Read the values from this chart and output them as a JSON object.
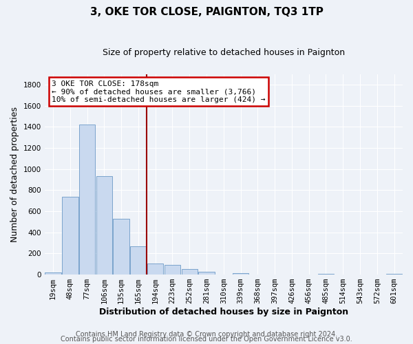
{
  "title": "3, OKE TOR CLOSE, PAIGNTON, TQ3 1TP",
  "subtitle": "Size of property relative to detached houses in Paignton",
  "xlabel": "Distribution of detached houses by size in Paignton",
  "ylabel": "Number of detached properties",
  "bar_labels": [
    "19sqm",
    "48sqm",
    "77sqm",
    "106sqm",
    "135sqm",
    "165sqm",
    "194sqm",
    "223sqm",
    "252sqm",
    "281sqm",
    "310sqm",
    "339sqm",
    "368sqm",
    "397sqm",
    "426sqm",
    "456sqm",
    "485sqm",
    "514sqm",
    "543sqm",
    "572sqm",
    "601sqm"
  ],
  "bar_values": [
    20,
    735,
    1420,
    935,
    530,
    270,
    105,
    90,
    50,
    25,
    0,
    15,
    0,
    0,
    0,
    0,
    10,
    0,
    0,
    0,
    5
  ],
  "bar_color": "#c9d9ef",
  "bar_edge_color": "#7aa3cc",
  "vline_x": 6.0,
  "vline_color": "#990000",
  "ylim": [
    0,
    1900
  ],
  "yticks": [
    0,
    200,
    400,
    600,
    800,
    1000,
    1200,
    1400,
    1600,
    1800
  ],
  "annotation_line1": "3 OKE TOR CLOSE: 178sqm",
  "annotation_line2": "← 90% of detached houses are smaller (3,766)",
  "annotation_line3": "10% of semi-detached houses are larger (424) →",
  "annotation_box_color": "#ffffff",
  "annotation_box_edge": "#cc0000",
  "footer_line1": "Contains HM Land Registry data © Crown copyright and database right 2024.",
  "footer_line2": "Contains public sector information licensed under the Open Government Licence v3.0.",
  "background_color": "#eef2f8",
  "grid_color": "#ffffff",
  "title_fontsize": 11,
  "subtitle_fontsize": 9,
  "axis_label_fontsize": 9,
  "tick_fontsize": 7.5,
  "footer_fontsize": 7
}
